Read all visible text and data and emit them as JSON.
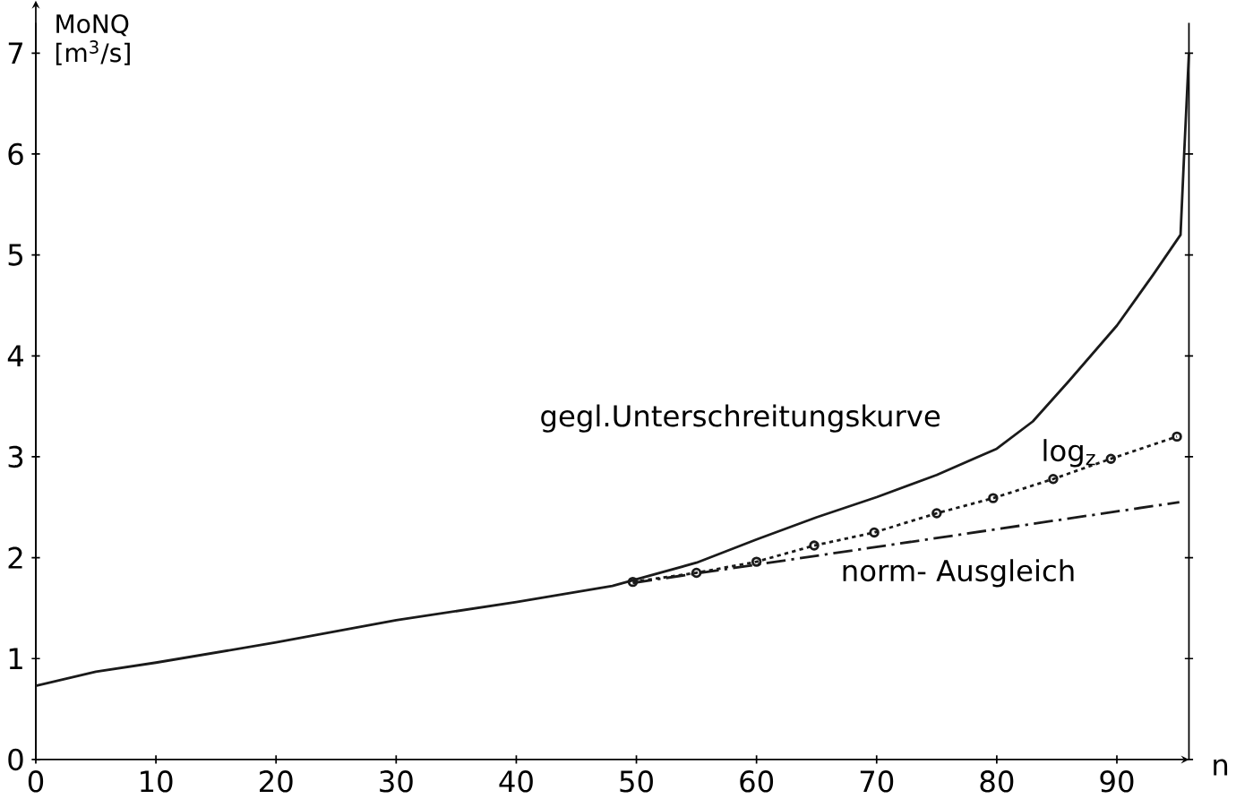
{
  "chart_data": {
    "type": "line",
    "ylabel": "MoNQ\n[m$^{3}$/s]",
    "xlabel": "n",
    "xlim": [
      0,
      96
    ],
    "ylim": [
      0,
      7.3
    ],
    "xticks": [
      0,
      10,
      20,
      30,
      40,
      50,
      60,
      70,
      80,
      90
    ],
    "yticks": [
      0,
      1,
      2,
      3,
      4,
      5,
      6,
      7
    ],
    "grid": false,
    "series": [
      {
        "name": "gegl.Unterschreitungskurve",
        "color": "#1a1a1a",
        "line_style": "solid",
        "marker": "none",
        "x": [
          0,
          5,
          10,
          20,
          30,
          40,
          48,
          55,
          60,
          65,
          70,
          75,
          80,
          83,
          86,
          90,
          93,
          95.3,
          95.6,
          96
        ],
        "values": [
          0.73,
          0.87,
          0.96,
          1.16,
          1.38,
          1.56,
          1.72,
          1.95,
          2.18,
          2.4,
          2.6,
          2.82,
          3.08,
          3.35,
          3.75,
          4.3,
          4.8,
          5.2,
          6.0,
          7.0
        ]
      },
      {
        "name": "log$_{z}$",
        "color": "#1a1a1a",
        "line_style": "dotted",
        "marker": "circle",
        "x": [
          49.7,
          55,
          60,
          64.8,
          69.8,
          75,
          79.7,
          84.7,
          89.5,
          95
        ],
        "values": [
          1.76,
          1.85,
          1.96,
          2.12,
          2.25,
          2.44,
          2.59,
          2.78,
          2.98,
          3.2
        ]
      },
      {
        "name": "norm- Ausgleich",
        "color": "#1a1a1a",
        "line_style": "dashed",
        "marker": "none",
        "x": [
          49.7,
          95.2
        ],
        "values": [
          1.75,
          2.55
        ]
      }
    ]
  }
}
